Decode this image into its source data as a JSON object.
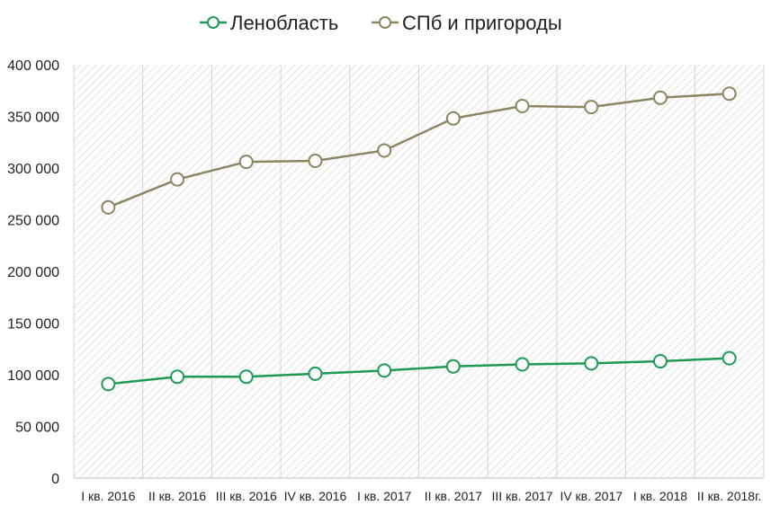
{
  "chart_data": {
    "type": "line",
    "title": "",
    "xlabel": "",
    "ylabel": "",
    "categories": [
      "I кв. 2016",
      "II кв. 2016",
      "III кв. 2016",
      "IV кв. 2016",
      "I кв. 2017",
      "II кв. 2017",
      "III кв. 2017",
      "IV кв. 2017",
      "I кв. 2018",
      "II кв. 2018г."
    ],
    "ylim": [
      0,
      400000
    ],
    "yticks": [
      0,
      50000,
      100000,
      150000,
      200000,
      250000,
      300000,
      350000,
      400000
    ],
    "ytick_labels": [
      "0",
      "50 000",
      "100 000",
      "150 000",
      "200 000",
      "250 000",
      "300 000",
      "350 000",
      "400 000"
    ],
    "grid": "hatched background",
    "legend_position": "top",
    "series": [
      {
        "name": "Ленобласть",
        "color": "#1e9a55",
        "values": [
          91000,
          98000,
          98000,
          101000,
          104000,
          108000,
          110000,
          111000,
          113000,
          116000
        ]
      },
      {
        "name": "СПб и пригороды",
        "color": "#8b8660",
        "values": [
          262000,
          289000,
          306000,
          307000,
          317000,
          348000,
          360000,
          359000,
          368000,
          372000
        ]
      }
    ]
  }
}
